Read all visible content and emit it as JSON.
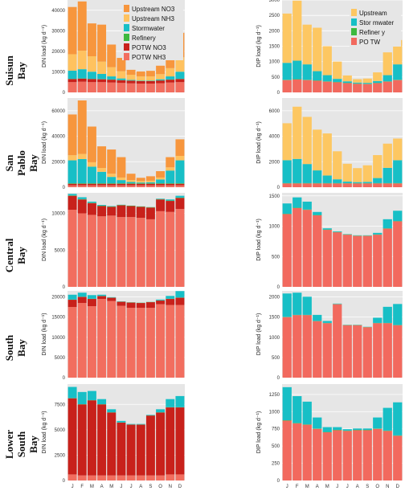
{
  "bays": [
    "Suisun Bay",
    "San Pablo Bay",
    "Central Bay",
    "South Bay",
    "Lower South Bay"
  ],
  "legends": {
    "din": [
      "Upstream NO3",
      "Upstream NH3",
      "Stormwater",
      "Refinery",
      "POTW NO3",
      "POTW NH3"
    ],
    "dip": [
      "Upstream",
      "Stor mwater",
      "Refiner y",
      "PO TW"
    ]
  },
  "colors": {
    "upstream_no3": "#F7963D",
    "upstream_nh3": "#FFC25F",
    "upstream": "#FDC762",
    "stormwater": "#17BFC6",
    "refinery": "#3DB93F",
    "potw_no3": "#C8211B",
    "potw_nh3": "#F26E5F",
    "potw": "#F2695E",
    "panel_bg": "#E6E6E6",
    "grid": "#FFFFFF"
  },
  "chart_data": [
    {
      "type": "bar",
      "stacked": true,
      "panel": "Suisun Bay DIN",
      "categories": [
        "J",
        "F",
        "M",
        "A",
        "M",
        "J",
        "J",
        "A",
        "S",
        "O",
        "N",
        "D"
      ],
      "ylabel": "DIN load (kg d⁻¹)",
      "ylim": [
        0,
        45000
      ],
      "yticks": [
        0,
        10000,
        20000,
        30000,
        40000
      ],
      "series": [
        {
          "name": "POTW NH3",
          "values": [
            5000,
            5200,
            5000,
            5000,
            4800,
            4600,
            4400,
            4300,
            4300,
            4500,
            4800,
            5000
          ]
        },
        {
          "name": "POTW NO3",
          "values": [
            1500,
            1500,
            1500,
            1400,
            1400,
            1300,
            1300,
            1200,
            1200,
            1300,
            1400,
            1500
          ]
        },
        {
          "name": "Refinery",
          "values": [
            100,
            100,
            100,
            100,
            100,
            100,
            100,
            100,
            100,
            100,
            100,
            100
          ]
        },
        {
          "name": "Stormwater",
          "values": [
            4000,
            4500,
            3500,
            2500,
            1500,
            800,
            300,
            200,
            200,
            500,
            1500,
            3500
          ]
        },
        {
          "name": "Upstream NH3",
          "values": [
            8000,
            9000,
            7500,
            6000,
            4500,
            3500,
            2500,
            2000,
            2000,
            2500,
            4000,
            7000
          ]
        },
        {
          "name": "Upstream NO3",
          "values": [
            23000,
            24000,
            16000,
            18000,
            11000,
            6500,
            2400,
            2400,
            2700,
            4100,
            6700,
            11900
          ]
        }
      ]
    },
    {
      "type": "bar",
      "stacked": true,
      "panel": "Suisun Bay DIP",
      "categories": [
        "J",
        "F",
        "M",
        "A",
        "M",
        "J",
        "J",
        "A",
        "S",
        "O",
        "N",
        "D"
      ],
      "ylabel": "DIP load (kg d⁻¹)",
      "ylim": [
        0,
        3000
      ],
      "yticks": [
        0,
        500,
        1000,
        1500,
        2000,
        2500,
        3000
      ],
      "series": [
        {
          "name": "PO TW",
          "values": [
            400,
            420,
            400,
            380,
            350,
            330,
            300,
            280,
            270,
            300,
            350,
            400
          ]
        },
        {
          "name": "Refiner y",
          "values": [
            10,
            10,
            10,
            10,
            10,
            10,
            10,
            10,
            10,
            10,
            10,
            10
          ]
        },
        {
          "name": "Stor mwater",
          "values": [
            550,
            600,
            500,
            300,
            200,
            100,
            50,
            30,
            30,
            60,
            200,
            500
          ]
        },
        {
          "name": "Upstream",
          "values": [
            1600,
            1950,
            1290,
            1410,
            940,
            560,
            190,
            110,
            140,
            280,
            740,
            790
          ]
        }
      ]
    },
    {
      "type": "bar",
      "stacked": true,
      "panel": "San Pablo Bay DIN",
      "categories": [
        "J",
        "F",
        "M",
        "A",
        "M",
        "J",
        "J",
        "A",
        "S",
        "O",
        "N",
        "D"
      ],
      "ylabel": "DIN load (kg d⁻¹)",
      "ylim": [
        0,
        70000
      ],
      "yticks": [
        0,
        20000,
        40000,
        60000
      ],
      "series": [
        {
          "name": "POTW NH3",
          "values": [
            1500,
            1500,
            1500,
            1500,
            1500,
            1500,
            1500,
            1500,
            1500,
            1500,
            1500,
            1500
          ]
        },
        {
          "name": "POTW NO3",
          "values": [
            1200,
            1200,
            1200,
            1200,
            1200,
            1200,
            1200,
            1200,
            1200,
            1200,
            1200,
            1200
          ]
        },
        {
          "name": "Refinery",
          "values": [
            400,
            400,
            400,
            400,
            400,
            400,
            400,
            400,
            400,
            400,
            400,
            400
          ]
        },
        {
          "name": "Stormwater",
          "values": [
            18000,
            19000,
            13000,
            9000,
            5000,
            2500,
            1000,
            600,
            800,
            3000,
            10000,
            18000
          ]
        },
        {
          "name": "Upstream NH3",
          "values": [
            4000,
            4000,
            3500,
            3000,
            2500,
            2000,
            1500,
            1200,
            1200,
            1500,
            2500,
            3500
          ]
        },
        {
          "name": "Upstream NO3",
          "values": [
            32000,
            42000,
            28000,
            17000,
            19000,
            16000,
            5000,
            2500,
            3500,
            5000,
            8000,
            13000
          ]
        }
      ]
    },
    {
      "type": "bar",
      "stacked": true,
      "panel": "San Pablo Bay DIP",
      "categories": [
        "J",
        "F",
        "M",
        "A",
        "M",
        "J",
        "J",
        "A",
        "S",
        "O",
        "N",
        "D"
      ],
      "ylabel": "DIP load (kg d⁻¹)",
      "ylim": [
        0,
        7000
      ],
      "yticks": [
        0,
        2000,
        4000,
        6000
      ],
      "series": [
        {
          "name": "PO TW",
          "values": [
            300,
            300,
            300,
            300,
            300,
            300,
            300,
            300,
            300,
            300,
            300,
            300
          ]
        },
        {
          "name": "Refiner y",
          "values": [
            20,
            20,
            20,
            20,
            20,
            20,
            20,
            20,
            20,
            20,
            20,
            20
          ]
        },
        {
          "name": "Stor mwater",
          "values": [
            1800,
            1900,
            1500,
            1000,
            600,
            300,
            120,
            80,
            100,
            400,
            1200,
            1800
          ]
        },
        {
          "name": "Upstream",
          "values": [
            2900,
            4100,
            3700,
            3200,
            3300,
            2200,
            1400,
            1100,
            1300,
            1800,
            1900,
            1700
          ]
        }
      ]
    },
    {
      "type": "bar",
      "stacked": true,
      "panel": "Central Bay DIN",
      "categories": [
        "J",
        "F",
        "M",
        "A",
        "M",
        "J",
        "J",
        "A",
        "S",
        "O",
        "N",
        "D"
      ],
      "ylabel": "DIN load (kg d⁻¹)",
      "ylim": [
        0,
        12800
      ],
      "yticks": [
        0,
        5000,
        10000
      ],
      "series": [
        {
          "name": "POTW NH3",
          "values": [
            10500,
            10000,
            9800,
            9600,
            9700,
            9500,
            9500,
            9400,
            9200,
            10300,
            10200,
            10600
          ]
        },
        {
          "name": "POTW NO3",
          "values": [
            1900,
            1900,
            1600,
            1400,
            1200,
            1600,
            1500,
            1500,
            1600,
            1600,
            1500,
            1500
          ]
        },
        {
          "name": "Refinery",
          "values": [
            50,
            50,
            50,
            50,
            50,
            50,
            50,
            50,
            50,
            50,
            50,
            50
          ]
        },
        {
          "name": "Stormwater",
          "values": [
            200,
            250,
            150,
            100,
            50,
            30,
            10,
            10,
            10,
            60,
            150,
            250
          ]
        }
      ]
    },
    {
      "type": "bar",
      "stacked": true,
      "panel": "Central Bay DIP",
      "categories": [
        "J",
        "F",
        "M",
        "A",
        "M",
        "J",
        "J",
        "A",
        "S",
        "O",
        "N",
        "D"
      ],
      "ylabel": "DIP load (kg d⁻¹)",
      "ylim": [
        0,
        1550
      ],
      "yticks": [
        0,
        500,
        1000,
        1500
      ],
      "series": [
        {
          "name": "PO TW",
          "values": [
            1200,
            1300,
            1270,
            1180,
            940,
            900,
            860,
            840,
            840,
            860,
            960,
            1080
          ]
        },
        {
          "name": "Refiner y",
          "values": [
            5,
            5,
            5,
            5,
            5,
            5,
            5,
            5,
            5,
            5,
            5,
            5
          ]
        },
        {
          "name": "Stor mwater",
          "values": [
            170,
            170,
            130,
            50,
            20,
            10,
            5,
            5,
            5,
            25,
            150,
            170
          ]
        }
      ]
    },
    {
      "type": "bar",
      "stacked": true,
      "panel": "South Bay DIN",
      "categories": [
        "J",
        "F",
        "M",
        "A",
        "M",
        "J",
        "J",
        "A",
        "S",
        "O",
        "N",
        "D"
      ],
      "ylabel": "DIN load (kg d⁻¹)",
      "ylim": [
        0,
        21500
      ],
      "yticks": [
        0,
        5000,
        10000,
        15000,
        20000
      ],
      "series": [
        {
          "name": "POTW NH3",
          "values": [
            17500,
            18500,
            17700,
            19500,
            19000,
            17800,
            17300,
            17300,
            17300,
            18200,
            18000,
            18000
          ]
        },
        {
          "name": "POTW NO3",
          "values": [
            1800,
            1500,
            1800,
            700,
            800,
            1000,
            1300,
            1200,
            1400,
            900,
            1500,
            1800
          ]
        },
        {
          "name": "Refinery",
          "values": [
            50,
            50,
            50,
            50,
            50,
            50,
            50,
            50,
            50,
            50,
            50,
            50
          ]
        },
        {
          "name": "Stormwater",
          "values": [
            1200,
            1000,
            900,
            300,
            100,
            50,
            20,
            20,
            20,
            200,
            700,
            1600
          ]
        }
      ]
    },
    {
      "type": "bar",
      "stacked": true,
      "panel": "South Bay DIP",
      "categories": [
        "J",
        "F",
        "M",
        "A",
        "M",
        "J",
        "J",
        "A",
        "S",
        "O",
        "N",
        "D"
      ],
      "ylabel": "DIP load (kg d⁻¹)",
      "ylim": [
        0,
        2150
      ],
      "yticks": [
        0,
        500,
        1000,
        1500,
        2000
      ],
      "series": [
        {
          "name": "PO TW",
          "values": [
            1500,
            1550,
            1550,
            1400,
            1350,
            1820,
            1300,
            1300,
            1250,
            1350,
            1350,
            1300
          ]
        },
        {
          "name": "Refiner y",
          "values": [
            5,
            5,
            5,
            5,
            5,
            5,
            5,
            5,
            5,
            5,
            5,
            5
          ]
        },
        {
          "name": "Stor mwater",
          "values": [
            580,
            550,
            450,
            150,
            50,
            10,
            5,
            5,
            5,
            130,
            400,
            520
          ]
        }
      ]
    },
    {
      "type": "bar",
      "stacked": true,
      "panel": "Lower South Bay DIN",
      "categories": [
        "J",
        "F",
        "M",
        "A",
        "M",
        "J",
        "J",
        "A",
        "S",
        "O",
        "N",
        "D"
      ],
      "ylabel": "DIN load (kg d⁻¹)",
      "ylim": [
        0,
        9500
      ],
      "yticks": [
        0,
        2500,
        5000,
        7500
      ],
      "series": [
        {
          "name": "POTW NH3",
          "values": [
            600,
            500,
            500,
            500,
            500,
            500,
            500,
            500,
            500,
            500,
            600,
            600
          ]
        },
        {
          "name": "POTW NO3",
          "values": [
            7500,
            7000,
            7400,
            7000,
            6200,
            5200,
            5000,
            5000,
            5900,
            6200,
            6600,
            6600
          ]
        },
        {
          "name": "Refinery",
          "values": [
            20,
            20,
            20,
            20,
            20,
            20,
            20,
            20,
            20,
            20,
            20,
            20
          ]
        },
        {
          "name": "Stormwater",
          "values": [
            1100,
            1200,
            900,
            500,
            300,
            150,
            50,
            50,
            50,
            300,
            800,
            1100
          ]
        }
      ]
    },
    {
      "type": "bar",
      "stacked": true,
      "panel": "Lower South Bay DIP",
      "categories": [
        "J",
        "F",
        "M",
        "A",
        "M",
        "J",
        "J",
        "A",
        "S",
        "O",
        "N",
        "D"
      ],
      "ylabel": "DIP load (kg d⁻¹)",
      "ylim": [
        0,
        1400
      ],
      "yticks": [
        0,
        250,
        500,
        750,
        1000,
        1250
      ],
      "series": [
        {
          "name": "PO TW",
          "values": [
            870,
            830,
            810,
            750,
            700,
            730,
            720,
            730,
            730,
            750,
            720,
            650
          ]
        },
        {
          "name": "Refiner y",
          "values": [
            5,
            5,
            5,
            5,
            5,
            5,
            5,
            5,
            5,
            5,
            5,
            5
          ]
        },
        {
          "name": "Stor mwater",
          "values": [
            480,
            390,
            330,
            160,
            70,
            40,
            20,
            20,
            20,
            160,
            330,
            480
          ]
        }
      ]
    }
  ]
}
